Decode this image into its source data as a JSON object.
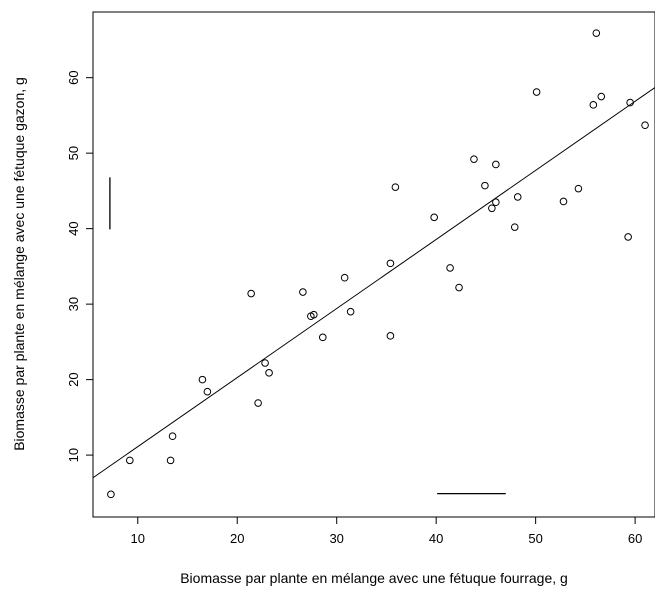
{
  "chart_data": {
    "type": "scatter",
    "title": "",
    "xlabel": "Biomasse par plante en mélange avec une fétuque fourrage, g",
    "ylabel": "Biomasse par plante en mélange avec une fétuque gazon, g",
    "xlim": [
      5.5,
      62
    ],
    "ylim": [
      1.8,
      68.7
    ],
    "xticks": [
      10,
      20,
      30,
      40,
      50,
      60
    ],
    "yticks": [
      10,
      20,
      30,
      40,
      50,
      60
    ],
    "tick_labels_x": [
      "10",
      "20",
      "30",
      "40",
      "50",
      "60"
    ],
    "tick_labels_y": [
      "10",
      "20",
      "30",
      "40",
      "50",
      "60"
    ],
    "grid": false,
    "points": [
      {
        "x": 7.3,
        "y": 4.8
      },
      {
        "x": 9.2,
        "y": 9.3
      },
      {
        "x": 13.3,
        "y": 9.3
      },
      {
        "x": 13.5,
        "y": 12.5
      },
      {
        "x": 16.5,
        "y": 20.0
      },
      {
        "x": 17.0,
        "y": 18.4
      },
      {
        "x": 21.4,
        "y": 31.4
      },
      {
        "x": 22.1,
        "y": 16.9
      },
      {
        "x": 22.8,
        "y": 22.2
      },
      {
        "x": 23.2,
        "y": 20.9
      },
      {
        "x": 26.6,
        "y": 31.6
      },
      {
        "x": 27.4,
        "y": 28.4
      },
      {
        "x": 27.7,
        "y": 28.6
      },
      {
        "x": 28.6,
        "y": 25.6
      },
      {
        "x": 30.8,
        "y": 33.5
      },
      {
        "x": 31.4,
        "y": 29.0
      },
      {
        "x": 35.4,
        "y": 35.4
      },
      {
        "x": 35.4,
        "y": 25.8
      },
      {
        "x": 35.9,
        "y": 45.5
      },
      {
        "x": 39.8,
        "y": 41.5
      },
      {
        "x": 41.4,
        "y": 34.8
      },
      {
        "x": 42.3,
        "y": 32.2
      },
      {
        "x": 43.8,
        "y": 49.2
      },
      {
        "x": 44.9,
        "y": 45.7
      },
      {
        "x": 45.6,
        "y": 42.7
      },
      {
        "x": 46.0,
        "y": 48.5
      },
      {
        "x": 46.0,
        "y": 43.5
      },
      {
        "x": 47.9,
        "y": 40.2
      },
      {
        "x": 48.2,
        "y": 44.2
      },
      {
        "x": 50.1,
        "y": 58.1
      },
      {
        "x": 52.8,
        "y": 43.6
      },
      {
        "x": 54.3,
        "y": 45.3
      },
      {
        "x": 55.8,
        "y": 56.4
      },
      {
        "x": 56.1,
        "y": 65.9
      },
      {
        "x": 56.6,
        "y": 57.5
      },
      {
        "x": 59.3,
        "y": 38.9
      },
      {
        "x": 59.5,
        "y": 56.7
      },
      {
        "x": 61.0,
        "y": 53.7
      }
    ],
    "fit_line": {
      "x": [
        5.5,
        62
      ],
      "y": [
        7.0,
        58.7
      ]
    },
    "error_bars": [
      {
        "orientation": "vertical",
        "x": 7.2,
        "y_from": 39.9,
        "y_to": 46.8
      },
      {
        "orientation": "horizontal",
        "y": 4.9,
        "x_from": 40.1,
        "x_to": 47.0
      }
    ]
  }
}
